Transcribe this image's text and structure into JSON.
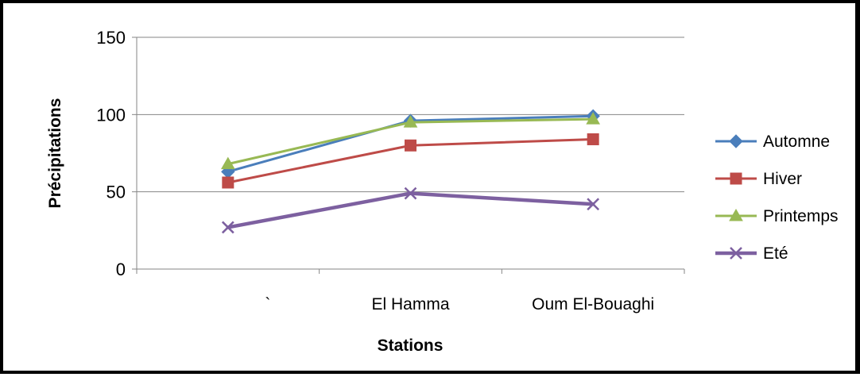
{
  "chart_data": {
    "type": "line",
    "title": "",
    "xlabel": "Stations",
    "ylabel": "Précipitations",
    "categories": [
      "`",
      "El Hamma",
      "Oum El-Bouaghi"
    ],
    "ylim": [
      0,
      150
    ],
    "yticks": [
      0,
      50,
      100,
      150
    ],
    "grid": true,
    "legend_position": "right",
    "series": [
      {
        "name": "Automne",
        "values": [
          63,
          96,
          99
        ],
        "color": "#4A7EBB",
        "marker": "diamond"
      },
      {
        "name": "Hiver",
        "values": [
          56,
          80,
          84
        ],
        "color": "#BE4B48",
        "marker": "square"
      },
      {
        "name": "Printemps",
        "values": [
          68,
          95,
          97
        ],
        "color": "#98B954",
        "marker": "triangle"
      },
      {
        "name": "Eté",
        "values": [
          27,
          49,
          42
        ],
        "color": "#7D60A0",
        "marker": "x"
      }
    ]
  }
}
